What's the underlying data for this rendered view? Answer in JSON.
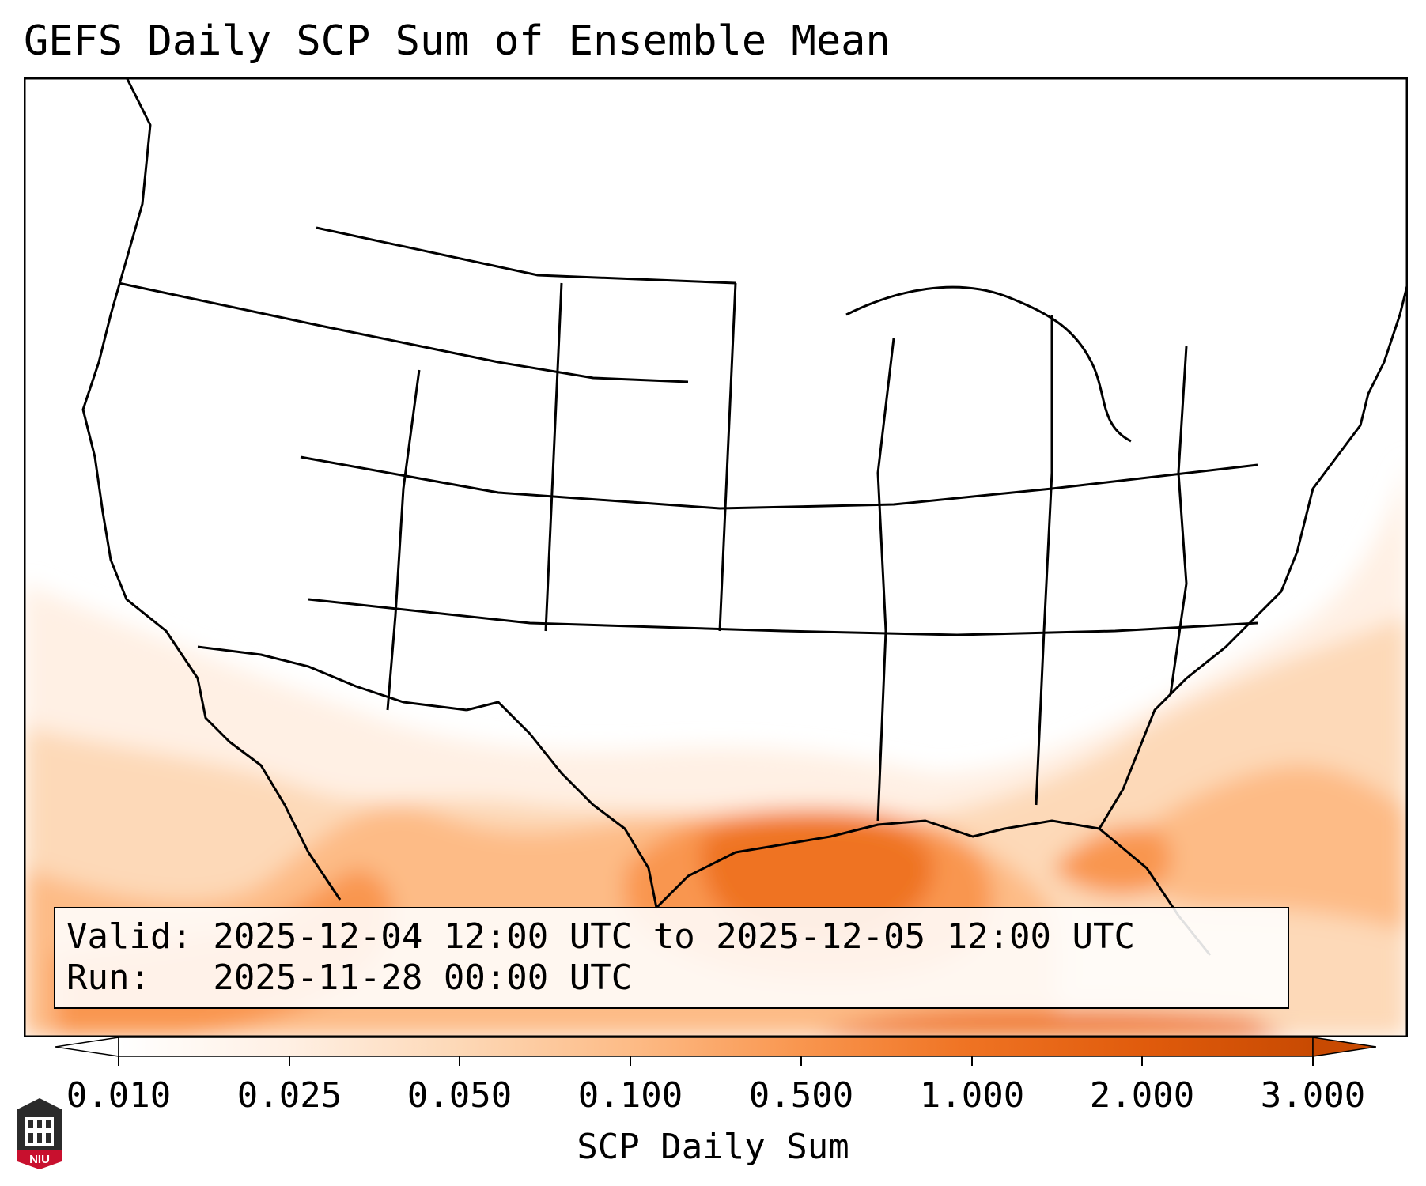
{
  "title": "GEFS Daily SCP Sum of Ensemble Mean",
  "info": {
    "valid": "Valid: 2025-12-04 12:00 UTC to 2025-12-05 12:00 UTC",
    "run": "Run:   2025-11-28 00:00 UTC"
  },
  "colorbar": {
    "label": "SCP Daily Sum",
    "ticks": [
      "0.010",
      "0.025",
      "0.050",
      "0.100",
      "0.500",
      "1.000",
      "2.000",
      "3.000"
    ],
    "colors": [
      "#ffffff",
      "#fff0e4",
      "#fdd9b8",
      "#fdbb86",
      "#f9964f",
      "#ef7323",
      "#e05b0c",
      "#c84a02"
    ]
  },
  "logo": {
    "text": "NIU"
  },
  "colors": {
    "frame": "#000000",
    "boundary": "#000000"
  }
}
